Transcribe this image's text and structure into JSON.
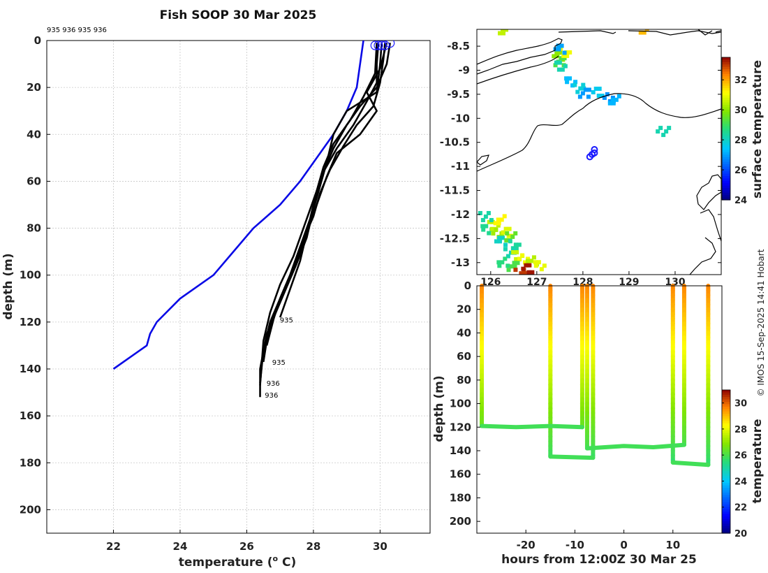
{
  "title": "Fish SOOP 30 Mar 2025",
  "copyright": "© IMOS 15-Sep-2025 14:41 Hobart",
  "profile_ids_top": "935 936 935 936",
  "colors": {
    "profile": "#000000",
    "climatology": "#0a0ae6",
    "marker": "#1a1aff"
  },
  "chart_data": [
    {
      "type": "line",
      "name": "temperature-depth profiles",
      "xlabel": "temperature (° C)",
      "xlabel_main": "temperature (",
      "xlabel_deg": "o",
      "xlabel_end": " C)",
      "ylabel": "depth (m)",
      "xlim": [
        20,
        31.5
      ],
      "ylim": [
        210,
        0
      ],
      "xticks": [
        22,
        24,
        26,
        28,
        30
      ],
      "yticks": [
        0,
        20,
        40,
        60,
        80,
        100,
        120,
        140,
        160,
        180,
        200
      ],
      "grid": true,
      "climatology": {
        "t": [
          29.5,
          29.3,
          29.0,
          28.6,
          28.1,
          27.6,
          27.0,
          26.2,
          25.6,
          25.0,
          24.0,
          23.3,
          23.1,
          23.0,
          22.0
        ],
        "d": [
          0,
          20,
          30,
          40,
          50,
          60,
          70,
          80,
          90,
          100,
          110,
          120,
          125,
          130,
          140
        ]
      },
      "profiles": [
        {
          "id": "935",
          "t": [
            29.95,
            29.9,
            29.9,
            29.6,
            29.2,
            28.7,
            28.3,
            28.1,
            27.9,
            27.6,
            27.3,
            27.0,
            26.8,
            26.6,
            26.5
          ],
          "d": [
            1,
            10,
            18,
            26,
            36,
            46,
            56,
            66,
            78,
            90,
            100,
            110,
            118,
            128,
            137
          ]
        },
        {
          "id": "936",
          "t": [
            30.05,
            30.0,
            29.9,
            29.0,
            28.6,
            28.4,
            28.2,
            28.0,
            27.8,
            27.5,
            27.2,
            26.9,
            26.6,
            26.4,
            26.4
          ],
          "d": [
            1,
            10,
            22,
            30,
            40,
            52,
            62,
            72,
            84,
            95,
            105,
            115,
            125,
            140,
            152
          ]
        },
        {
          "id": "935",
          "t": [
            30.15,
            30.1,
            30.0,
            29.8,
            29.3,
            28.9,
            28.5,
            28.2,
            28.0,
            27.6,
            27.3,
            27.0,
            26.8,
            26.6
          ],
          "d": [
            1,
            8,
            18,
            28,
            36,
            45,
            55,
            65,
            75,
            88,
            100,
            110,
            119,
            130
          ]
        },
        {
          "id": "936",
          "t": [
            30.3,
            30.2,
            29.9,
            29.4,
            29.0,
            28.6,
            28.3,
            28.0,
            27.7,
            27.4,
            27.0,
            26.7,
            26.5,
            26.4
          ],
          "d": [
            1,
            10,
            20,
            28,
            36,
            46,
            56,
            68,
            80,
            92,
            104,
            116,
            128,
            147
          ]
        },
        {
          "id": "935",
          "t": [
            30.2,
            30.0,
            29.6,
            29.9,
            29.4,
            28.7,
            28.4,
            28.1,
            27.8,
            27.6,
            27.3,
            27.0
          ],
          "d": [
            1,
            12,
            22,
            30,
            40,
            48,
            58,
            70,
            82,
            94,
            106,
            118
          ]
        },
        {
          "id": "936",
          "t": [
            29.9,
            29.85,
            29.5,
            29.1,
            28.6,
            28.3,
            28.1,
            27.9,
            27.6,
            27.3,
            27.0,
            26.7,
            26.5,
            26.4
          ],
          "d": [
            1,
            14,
            24,
            34,
            44,
            54,
            64,
            76,
            88,
            100,
            110,
            120,
            132,
            146
          ]
        }
      ],
      "annotations": [
        {
          "text": "935",
          "t": 26.95,
          "d": 119
        },
        {
          "text": "935",
          "t": 26.72,
          "d": 137
        },
        {
          "text": "936",
          "t": 26.55,
          "d": 146
        },
        {
          "text": "936",
          "t": 26.5,
          "d": 151
        }
      ],
      "surface_markers": [
        {
          "t": 29.85,
          "d": 1.5
        },
        {
          "t": 29.95,
          "d": 1.5
        },
        {
          "t": 30.05,
          "d": 1.5
        },
        {
          "t": 30.15,
          "d": 1.5
        },
        {
          "t": 30.3,
          "d": 0.5
        }
      ]
    },
    {
      "type": "heatmap",
      "name": "surface temperature map",
      "xticks": [
        126,
        127,
        128,
        129,
        130
      ],
      "yticks": [
        -8.5,
        -9,
        -9.5,
        -10,
        -10.5,
        -11,
        -11.5,
        -12,
        -12.5,
        -13
      ],
      "xlim": [
        125.7,
        131.0
      ],
      "ylim": [
        -13.25,
        -8.15
      ],
      "colorbar": {
        "label": "surface temperature",
        "range": [
          24,
          33.5
        ],
        "ticks": [
          24,
          26,
          28,
          30,
          32
        ]
      },
      "ship_positions": [
        {
          "lon": 128.25,
          "lat": -10.65
        },
        {
          "lon": 128.2,
          "lat": -10.75
        },
        {
          "lon": 128.15,
          "lat": -10.8
        },
        {
          "lon": 128.25,
          "lat": -10.72
        }
      ],
      "sst_patches": [
        {
          "lon": 125.9,
          "lat": -12.3,
          "v": 28.5
        },
        {
          "lon": 126.0,
          "lat": -12.2,
          "v": 30.5
        },
        {
          "lon": 126.1,
          "lat": -12.35,
          "v": 30.2
        },
        {
          "lon": 126.2,
          "lat": -12.5,
          "v": 28.0
        },
        {
          "lon": 126.3,
          "lat": -12.3,
          "v": 30.8
        },
        {
          "lon": 126.4,
          "lat": -12.45,
          "v": 29.5
        },
        {
          "lon": 126.5,
          "lat": -12.6,
          "v": 28.4
        },
        {
          "lon": 126.35,
          "lat": -12.75,
          "v": 28.2
        },
        {
          "lon": 126.55,
          "lat": -12.8,
          "v": 30.6
        },
        {
          "lon": 126.7,
          "lat": -12.85,
          "v": 31.0
        },
        {
          "lon": 126.85,
          "lat": -12.95,
          "v": 30.4
        },
        {
          "lon": 126.45,
          "lat": -13.05,
          "v": 29.2
        },
        {
          "lon": 125.85,
          "lat": -12.0,
          "v": 28.3
        },
        {
          "lon": 126.15,
          "lat": -12.05,
          "v": 31.2
        },
        {
          "lon": 126.6,
          "lat": -13.15,
          "v": 33.0
        },
        {
          "lon": 127.0,
          "lat": -13.05,
          "v": 30.9
        },
        {
          "lon": 126.75,
          "lat": -13.1,
          "v": 33.3
        },
        {
          "lon": 126.25,
          "lat": -12.95,
          "v": 28.7
        },
        {
          "lon": 127.4,
          "lat": -8.65,
          "v": 30.0
        },
        {
          "lon": 127.45,
          "lat": -8.75,
          "v": 29.2
        },
        {
          "lon": 127.5,
          "lat": -8.9,
          "v": 28.2
        },
        {
          "lon": 127.55,
          "lat": -8.6,
          "v": 31.0
        },
        {
          "lon": 127.7,
          "lat": -9.2,
          "v": 27.3
        },
        {
          "lon": 128.3,
          "lat": -9.4,
          "v": 27.6
        },
        {
          "lon": 128.5,
          "lat": -9.5,
          "v": 26.8
        },
        {
          "lon": 128.65,
          "lat": -9.6,
          "v": 27.2
        },
        {
          "lon": 127.9,
          "lat": -9.35,
          "v": 27.8
        },
        {
          "lon": 129.3,
          "lat": -8.1,
          "v": 31.8
        },
        {
          "lon": 126.2,
          "lat": -8.1,
          "v": 30.5
        },
        {
          "lon": 129.7,
          "lat": -10.2,
          "v": 28.2
        },
        {
          "lon": 127.45,
          "lat": -8.55,
          "v": 27.0
        },
        {
          "lon": 128.0,
          "lat": -9.45,
          "v": 26.9
        }
      ]
    },
    {
      "type": "scatter",
      "name": "temperature section vs time",
      "xlabel": "hours from 12:00Z 30 Mar 25",
      "ylabel": "depth (m)",
      "xlim": [
        -30,
        20
      ],
      "ylim": [
        210,
        0
      ],
      "xticks": [
        -20,
        -10,
        0,
        10
      ],
      "yticks": [
        0,
        20,
        40,
        60,
        80,
        100,
        120,
        140,
        160,
        180,
        200
      ],
      "colorbar": {
        "label": "temperature",
        "range": [
          20,
          31
        ],
        "ticks": [
          20,
          22,
          24,
          26,
          28,
          30
        ]
      },
      "casts": [
        {
          "hour": -29.0,
          "max_depth": 119
        },
        {
          "hour": -15.0,
          "max_depth": 145
        },
        {
          "hour": -8.5,
          "max_depth": 120
        },
        {
          "hour": -7.5,
          "max_depth": 138
        },
        {
          "hour": -6.3,
          "max_depth": 146
        },
        {
          "hour": 10.0,
          "max_depth": 150
        },
        {
          "hour": 12.3,
          "max_depth": 135
        },
        {
          "hour": 17.2,
          "max_depth": 152
        }
      ],
      "bottom_track": [
        {
          "h": -29.0,
          "d": 119
        },
        {
          "h": -22.0,
          "d": 120
        },
        {
          "h": -15.0,
          "d": 119
        },
        {
          "h": -8.5,
          "d": 120
        },
        {
          "h": -15.0,
          "d": 145
        },
        {
          "h": -6.3,
          "d": 146
        },
        {
          "h": -7.5,
          "d": 138
        },
        {
          "h": 0,
          "d": 136
        },
        {
          "h": 6.0,
          "d": 137
        },
        {
          "h": 12.3,
          "d": 135
        },
        {
          "h": 10.0,
          "d": 150
        },
        {
          "h": 17.2,
          "d": 152
        }
      ]
    }
  ]
}
